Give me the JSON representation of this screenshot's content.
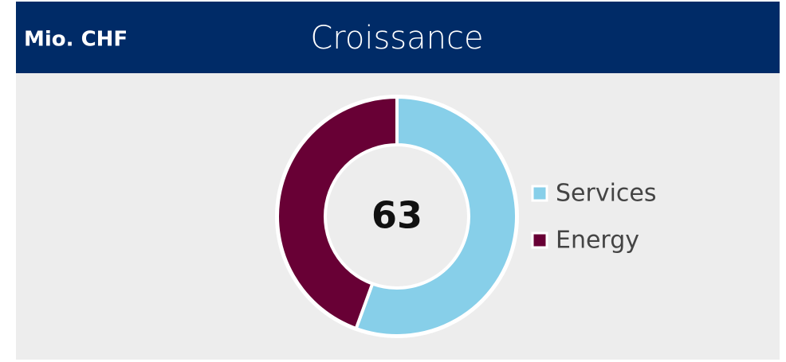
{
  "header": {
    "unit": "Mio. CHF"
  },
  "chart_data": {
    "type": "donut",
    "title": "Croissance",
    "total": 63,
    "categories": [
      "Services",
      "Energy"
    ],
    "values": [
      35,
      28
    ],
    "colors": [
      "#87cfe9",
      "#680035"
    ],
    "legend": "right"
  }
}
